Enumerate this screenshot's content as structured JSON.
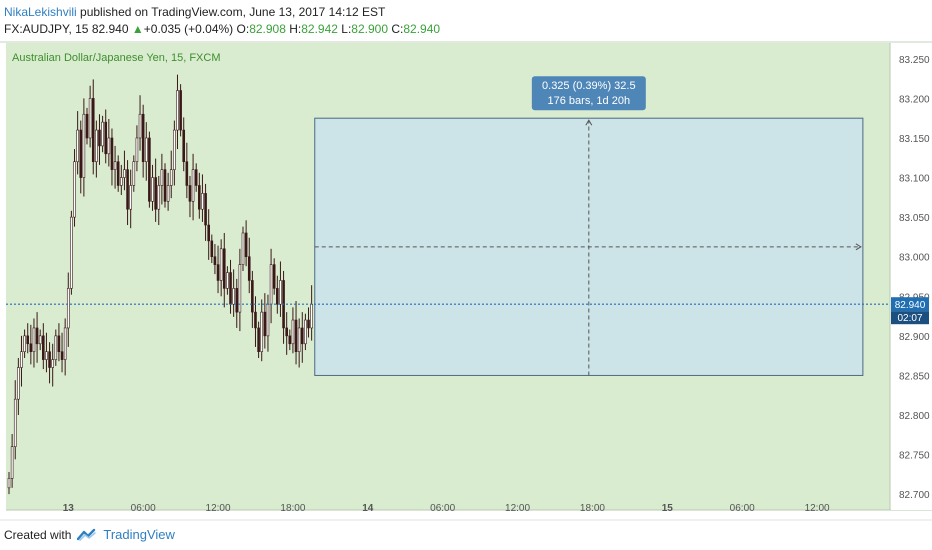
{
  "header": {
    "author": "NikaLekishvili",
    "published": " published on TradingView.com, June 13, 2017 14:12 EST",
    "symbol_line": "FX:AUDJPY, 15  82.940",
    "change_arrow": "▲",
    "change": "+0.035 (+0.04%)",
    "o_label": "O:",
    "o_value": "82.908",
    "h_label": "H:",
    "h_value": "82.942",
    "l_label": "L:",
    "l_value": "82.900",
    "c_label": "C:",
    "c_value": "82.940"
  },
  "footer": {
    "created_with": "Created with",
    "brand": "TradingView"
  },
  "colors": {
    "plot_bg": "#d9ecd0",
    "box_fill": "#cce3e8",
    "box_border": "#4a6a80",
    "price_line": "#1f6fb2",
    "candle": "#3a1818",
    "title_text": "#3f8e2e",
    "label_bg": "#4f86b8",
    "accent_blue": "#2f7fc1"
  },
  "chart_data": {
    "type": "candlestick",
    "title": "Australian Dollar/Japanese Yen, 15, FXCM",
    "ylim": [
      82.68,
      83.27
    ],
    "y_ticks": [
      "83.250",
      "83.200",
      "83.150",
      "83.100",
      "83.050",
      "83.000",
      "82.950",
      "82.900",
      "82.850",
      "82.800",
      "82.750",
      "82.700"
    ],
    "y_tick_values": [
      83.25,
      83.2,
      83.15,
      83.1,
      83.05,
      83.0,
      82.95,
      82.9,
      82.85,
      82.8,
      82.75,
      82.7
    ],
    "x_ticks": [
      {
        "bar": 19,
        "label": "13",
        "bold": true
      },
      {
        "bar": 43,
        "label": "06:00",
        "bold": false
      },
      {
        "bar": 67,
        "label": "12:00",
        "bold": false
      },
      {
        "bar": 91,
        "label": "18:00",
        "bold": false
      },
      {
        "bar": 115,
        "label": "14",
        "bold": true
      },
      {
        "bar": 139,
        "label": "06:00",
        "bold": false
      },
      {
        "bar": 163,
        "label": "12:00",
        "bold": false
      },
      {
        "bar": 187,
        "label": "18:00",
        "bold": false
      },
      {
        "bar": 211,
        "label": "15",
        "bold": true
      },
      {
        "bar": 235,
        "label": "06:00",
        "bold": false
      },
      {
        "bar": 259,
        "label": "12:00",
        "bold": false
      }
    ],
    "last_price": 82.94,
    "last_price_label": "82.940",
    "countdown_label": "02:07",
    "closes": [
      82.72,
      82.76,
      82.82,
      82.86,
      82.88,
      82.9,
      82.89,
      82.88,
      82.91,
      82.89,
      82.9,
      82.87,
      82.88,
      82.86,
      82.87,
      82.9,
      82.88,
      82.87,
      82.91,
      82.96,
      83.05,
      83.12,
      83.16,
      83.1,
      83.18,
      83.15,
      83.2,
      83.12,
      83.16,
      83.14,
      83.17,
      83.13,
      83.15,
      83.11,
      83.12,
      83.09,
      83.1,
      83.11,
      83.06,
      83.09,
      83.12,
      83.15,
      83.18,
      83.12,
      83.15,
      83.07,
      83.1,
      83.06,
      83.09,
      83.11,
      83.07,
      83.09,
      83.11,
      83.16,
      83.21,
      83.16,
      83.12,
      83.09,
      83.07,
      83.11,
      83.09,
      83.06,
      83.08,
      83.04,
      83.02,
      83.0,
      82.99,
      82.97,
      83.01,
      82.96,
      82.98,
      82.94,
      82.96,
      82.93,
      82.99,
      83.03,
      83.0,
      82.97,
      82.93,
      82.91,
      82.88,
      82.93,
      82.9,
      82.94,
      82.99,
      82.96,
      82.94,
      82.97,
      82.91,
      82.9,
      82.89,
      82.92,
      82.88,
      82.91,
      82.89,
      82.92,
      82.91,
      82.94
    ],
    "measure_box": {
      "start_price": 82.85,
      "end_price": 83.175,
      "start_bar": 98,
      "end_bar": 274,
      "label_line1": "0.325 (0.39%) 32.5",
      "label_line2": "176 bars, 1d 20h"
    }
  }
}
